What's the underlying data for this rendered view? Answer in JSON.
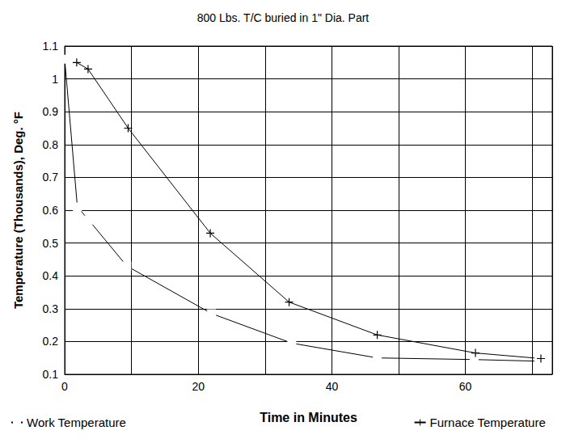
{
  "chart_data": {
    "type": "line",
    "title": "800 Lbs. T/C buried in 1\" Dia. Part",
    "x_label": "Time in Minutes",
    "y_label": "Temperature (Thousands), Deg. °F",
    "xlim": [
      0,
      73
    ],
    "xticks": [
      0,
      20,
      40,
      60
    ],
    "ylim": [
      0.1,
      1.1
    ],
    "yticks": [
      0.1,
      0.2,
      0.3,
      0.4,
      0.5,
      0.6,
      0.7,
      0.8,
      0.9,
      1,
      1.1
    ],
    "grid": true,
    "legend": "bottom",
    "series": [
      {
        "name": "Work Temperature",
        "color": "#000000",
        "marker": "square",
        "x": [
          0,
          1.9,
          3.6,
          9.3,
          22,
          34,
          46.8,
          61.3,
          71
        ],
        "values": [
          1.06,
          0.61,
          0.57,
          0.43,
          0.285,
          0.195,
          0.15,
          0.145,
          0.14
        ]
      },
      {
        "name": "Furnace Temperature",
        "color": "#000000",
        "marker": "plus",
        "x": [
          1.8,
          3.5,
          9.5,
          21.8,
          33.6,
          46.8,
          61.5,
          71.3
        ],
        "values": [
          1.05,
          1.03,
          0.85,
          0.53,
          0.32,
          0.22,
          0.165,
          0.148
        ]
      }
    ]
  }
}
